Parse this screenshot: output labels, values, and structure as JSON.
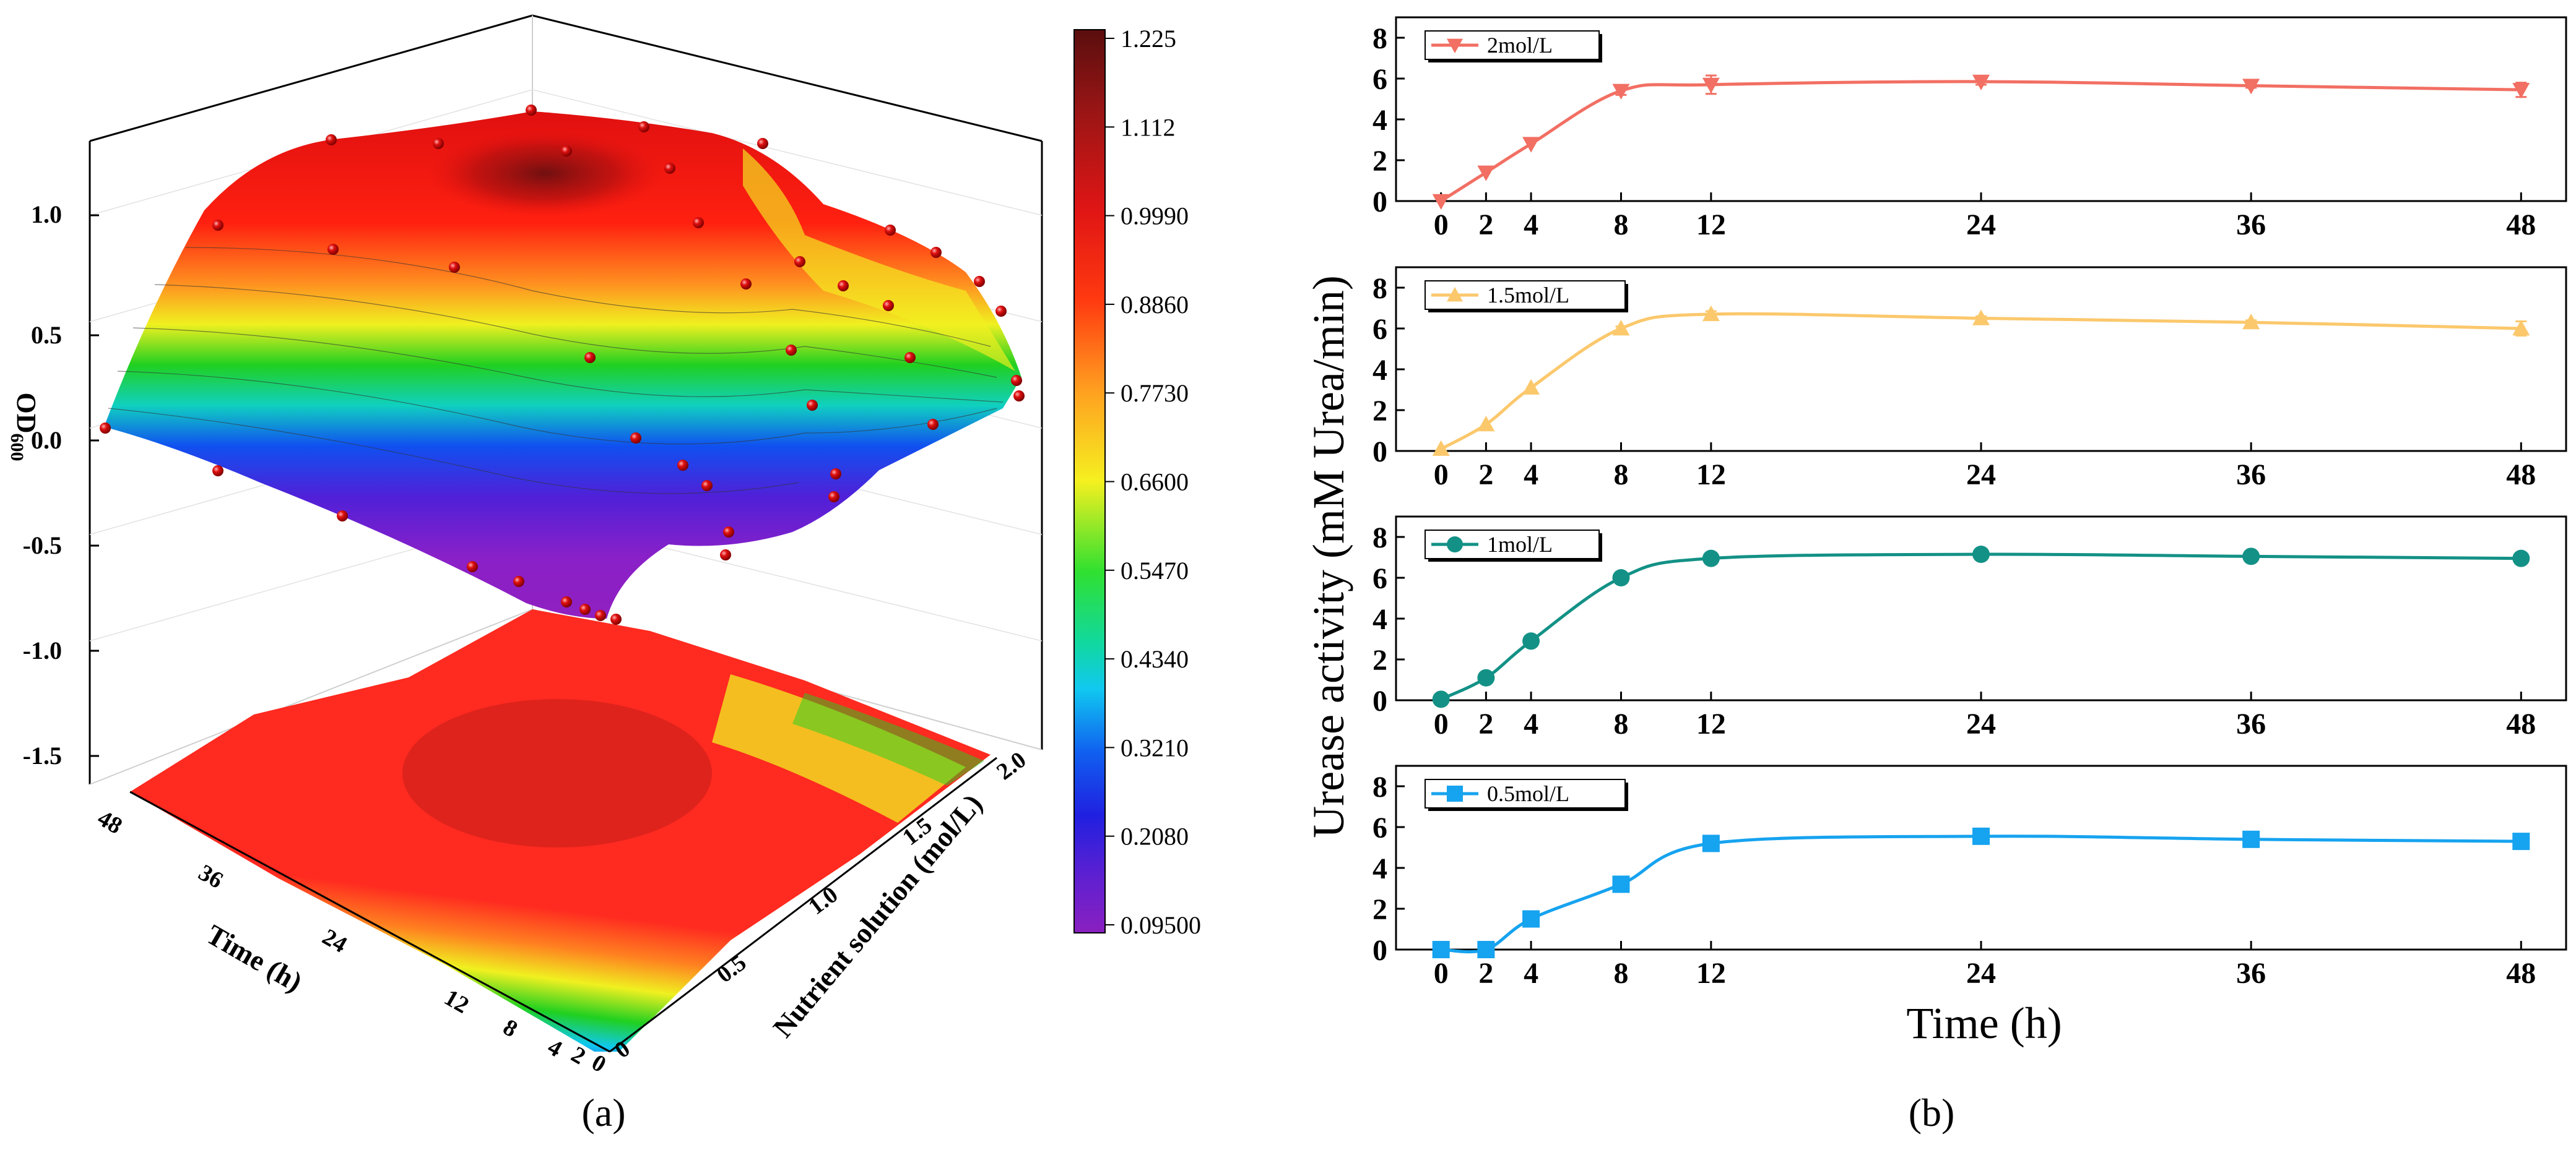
{
  "panel_labels": {
    "a": "(a)",
    "b": "(b)"
  },
  "chart_data": [
    {
      "id": "a",
      "type": "surface3d",
      "zlabel": "OD",
      "zlabel_sub": "600",
      "xlabel": "Time (h)",
      "ylabel": "Nutrient solution (mol/L)",
      "z_ticks": [
        "1.0",
        "0.5",
        "0.0",
        "-0.5",
        "-1.0",
        "-1.5"
      ],
      "time_ticks": [
        "48",
        "36",
        "24",
        "12",
        "8",
        "4",
        "2",
        "0"
      ],
      "conc_ticks": [
        "0",
        "0.5",
        "1.0",
        "1.5",
        "2.0"
      ],
      "time_values": [
        0,
        2,
        4,
        8,
        12,
        24,
        36,
        48
      ],
      "conc_values": [
        0.5,
        1.0,
        1.5,
        2.0
      ],
      "od600": [
        [
          0.01,
          0.06,
          0.15,
          0.45,
          0.7,
          0.85,
          0.8,
          0.66
        ],
        [
          0.02,
          0.1,
          0.4,
          0.8,
          1.0,
          1.15,
          1.05,
          0.95
        ],
        [
          0.02,
          0.15,
          0.55,
          0.9,
          1.05,
          1.22,
          1.1,
          1.05
        ],
        [
          0.02,
          0.1,
          0.3,
          0.7,
          0.85,
          0.95,
          0.9,
          0.85
        ]
      ],
      "colorbar": {
        "ticks": [
          "1.225",
          "1.112",
          "0.9990",
          "0.8860",
          "0.7730",
          "0.6600",
          "0.5470",
          "0.4340",
          "0.3210",
          "0.2080",
          "0.09500"
        ],
        "min": 0.095,
        "max": 1.225
      }
    },
    {
      "id": "b",
      "type": "line",
      "ylabel": "Urease activity (mM Urea/min)",
      "xlabel": "Time (h)",
      "xlim": [
        -2,
        50
      ],
      "ylim": [
        0,
        9
      ],
      "x_ticks": [
        0,
        2,
        4,
        8,
        12,
        24,
        36,
        48
      ],
      "y_ticks": [
        0,
        2,
        4,
        6,
        8
      ],
      "series": [
        {
          "name": "2mol/L",
          "marker": "triangle-down",
          "color": "#f26f63",
          "x": [
            0,
            2,
            4,
            8,
            12,
            24,
            36,
            48
          ],
          "values": [
            0.0,
            1.4,
            2.8,
            5.4,
            5.7,
            5.85,
            5.65,
            5.45
          ],
          "error": [
            0,
            0,
            0,
            0.2,
            0.45,
            0.15,
            0.1,
            0.35
          ]
        },
        {
          "name": "1.5mol/L",
          "marker": "triangle-up",
          "color": "#fbc86c",
          "x": [
            0,
            2,
            4,
            8,
            12,
            24,
            36,
            48
          ],
          "values": [
            0.1,
            1.3,
            3.1,
            6.0,
            6.7,
            6.5,
            6.3,
            6.0
          ],
          "error": [
            0,
            0,
            0,
            0.1,
            0.15,
            0.1,
            0.1,
            0.35
          ]
        },
        {
          "name": "1mol/L",
          "marker": "circle",
          "color": "#139186",
          "x": [
            0,
            2,
            4,
            8,
            12,
            24,
            36,
            48
          ],
          "values": [
            0.05,
            1.1,
            2.9,
            6.0,
            6.95,
            7.15,
            7.05,
            6.95
          ],
          "error": [
            0,
            0,
            0,
            0.1,
            0.1,
            0.1,
            0.1,
            0.1
          ]
        },
        {
          "name": "0.5mol/L",
          "marker": "square",
          "color": "#16a3ef",
          "x": [
            0,
            2,
            4,
            8,
            12,
            24,
            36,
            48
          ],
          "values": [
            0.0,
            0.0,
            1.5,
            3.2,
            5.2,
            5.55,
            5.4,
            5.3
          ],
          "error": [
            0,
            0,
            0,
            0.1,
            0.15,
            0.1,
            0.1,
            0.1
          ]
        }
      ]
    }
  ]
}
